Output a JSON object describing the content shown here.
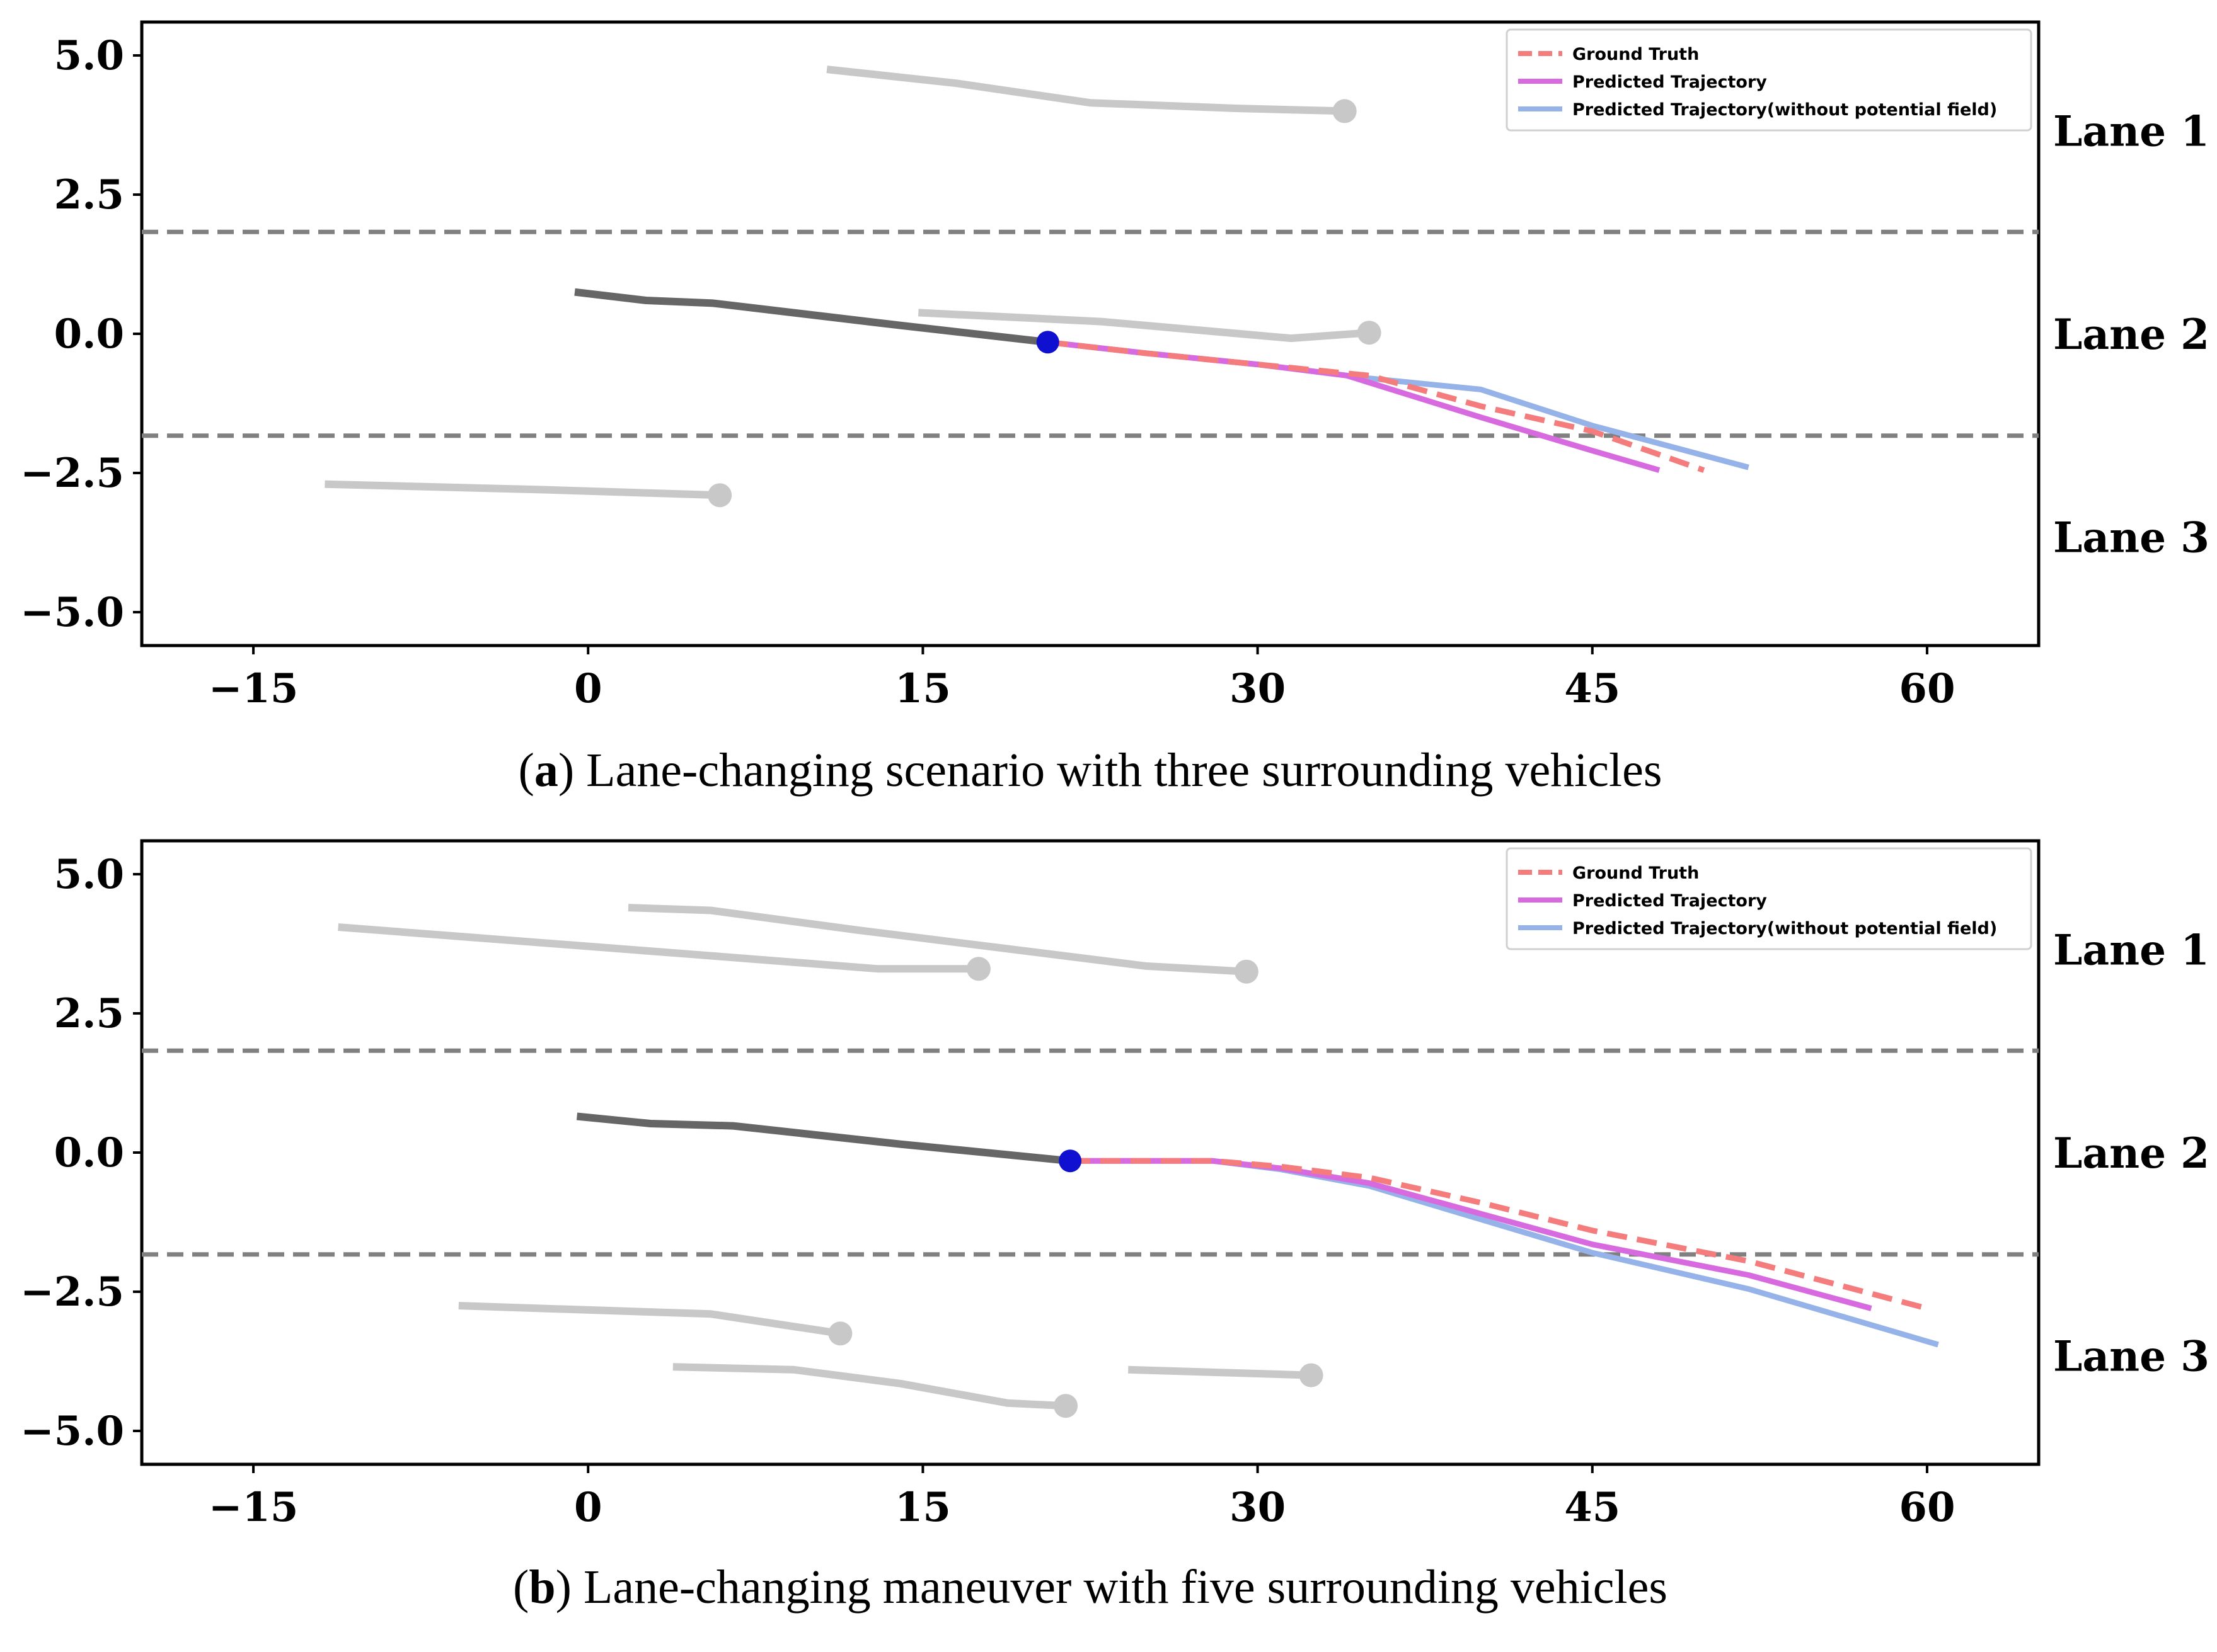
{
  "chart_data": [
    {
      "type": "line",
      "panel": "a",
      "caption_letter": "a",
      "caption_open": "(",
      "caption_rest": ") Lane-changing scenario with three surrounding vehicles",
      "xlim": [
        -20,
        65
      ],
      "ylim": [
        -5.6,
        5.6
      ],
      "xticks": [
        -15,
        0,
        15,
        30,
        45,
        60
      ],
      "xtick_labels": [
        "−15",
        "0",
        "15",
        "30",
        "45",
        "60"
      ],
      "yticks": [
        5.0,
        2.5,
        0.0,
        -2.5,
        -5.0
      ],
      "ytick_labels": [
        "5.0",
        "2.5",
        "0.0",
        "−2.5",
        "−5.0"
      ],
      "lane_boundaries": [
        1.83,
        -1.83
      ],
      "lane_labels": [
        {
          "text": "Lane 1",
          "y": 3.65
        },
        {
          "text": "Lane 2",
          "y": 0.0
        },
        {
          "text": "Lane 3",
          "y": -3.65
        }
      ],
      "legend": [
        "Ground Truth",
        "Predicted Trajectory",
        "Predicted Trajectory(without potential field)"
      ],
      "legend_position": "top-right",
      "colors": {
        "ground_truth": "#f47c7c",
        "predicted": "#d86ae0",
        "predicted_no_field": "#95b3e8",
        "ego_history": "#666666",
        "surrounding": "#c8c8c8",
        "ego_marker": "#1010d0",
        "lane_line": "#808080"
      },
      "surrounding": [
        [
          [
            10.7,
            4.75
          ],
          [
            16.5,
            4.5
          ],
          [
            22.5,
            4.15
          ],
          [
            29,
            4.05
          ],
          [
            33.9,
            4.0
          ]
        ],
        [
          [
            14.8,
            0.38
          ],
          [
            23,
            0.22
          ],
          [
            31.5,
            -0.08
          ],
          [
            35,
            0.02
          ]
        ],
        [
          [
            -11.8,
            -2.7
          ],
          [
            -2,
            -2.8
          ],
          [
            5.9,
            -2.9
          ]
        ]
      ],
      "ego_history": [
        [
          -0.6,
          0.75
        ],
        [
          2.6,
          0.6
        ],
        [
          5.6,
          0.55
        ],
        [
          14,
          0.15
        ],
        [
          20.6,
          -0.15
        ]
      ],
      "ego_current": [
        20.6,
        -0.15
      ],
      "ground_truth": [
        [
          20.6,
          -0.15
        ],
        [
          25,
          -0.35
        ],
        [
          30,
          -0.55
        ],
        [
          35,
          -0.75
        ],
        [
          40,
          -1.3
        ],
        [
          45,
          -1.75
        ],
        [
          50,
          -2.45
        ]
      ],
      "predicted": [
        [
          20.6,
          -0.15
        ],
        [
          25,
          -0.35
        ],
        [
          30,
          -0.55
        ],
        [
          34,
          -0.75
        ],
        [
          40,
          -1.5
        ],
        [
          45,
          -2.1
        ],
        [
          48,
          -2.45
        ]
      ],
      "predicted_no_field": [
        [
          20.6,
          -0.15
        ],
        [
          25,
          -0.35
        ],
        [
          30,
          -0.55
        ],
        [
          35,
          -0.8
        ],
        [
          40,
          -1.0
        ],
        [
          45,
          -1.65
        ],
        [
          52,
          -2.4
        ]
      ]
    },
    {
      "type": "line",
      "panel": "b",
      "caption_letter": "b",
      "caption_open": "(",
      "caption_rest": ") Lane-changing maneuver with five surrounding vehicles",
      "xlim": [
        -20,
        65
      ],
      "ylim": [
        -5.6,
        5.6
      ],
      "xticks": [
        -15,
        0,
        15,
        30,
        45,
        60
      ],
      "xtick_labels": [
        "−15",
        "0",
        "15",
        "30",
        "45",
        "60"
      ],
      "yticks": [
        5.0,
        2.5,
        0.0,
        -2.5,
        -5.0
      ],
      "ytick_labels": [
        "5.0",
        "2.5",
        "0.0",
        "−2.5",
        "−5.0"
      ],
      "lane_boundaries": [
        1.83,
        -1.83
      ],
      "lane_labels": [
        {
          "text": "Lane 1",
          "y": 3.65
        },
        {
          "text": "Lane 2",
          "y": 0.0
        },
        {
          "text": "Lane 3",
          "y": -3.65
        }
      ],
      "legend": [
        "Ground Truth",
        "Predicted Trajectory",
        "Predicted Trajectory(without potential field)"
      ],
      "legend_position": "top-right",
      "colors": {
        "ground_truth": "#f47c7c",
        "predicted": "#d86ae0",
        "predicted_no_field": "#95b3e8",
        "ego_history": "#666666",
        "surrounding": "#c8c8c8",
        "ego_marker": "#1010d0",
        "lane_line": "#808080"
      },
      "surrounding": [
        [
          [
            -11.2,
            4.05
          ],
          [
            5,
            3.55
          ],
          [
            13,
            3.3
          ],
          [
            17.5,
            3.3
          ]
        ],
        [
          [
            1.8,
            4.4
          ],
          [
            5.5,
            4.35
          ],
          [
            12,
            4.0
          ],
          [
            25,
            3.35
          ],
          [
            29.5,
            3.25
          ]
        ],
        [
          [
            -5.8,
            -2.75
          ],
          [
            5.5,
            -2.9
          ],
          [
            11.3,
            -3.25
          ]
        ],
        [
          [
            3.8,
            -3.85
          ],
          [
            9.2,
            -3.9
          ],
          [
            14,
            -4.15
          ],
          [
            18.8,
            -4.5
          ],
          [
            21.4,
            -4.55
          ]
        ],
        [
          [
            24.2,
            -3.9
          ],
          [
            32.4,
            -4.0
          ]
        ]
      ],
      "ego_history": [
        [
          -0.5,
          0.65
        ],
        [
          2.8,
          0.52
        ],
        [
          6.5,
          0.48
        ],
        [
          14,
          0.15
        ],
        [
          21.6,
          -0.15
        ]
      ],
      "ego_current": [
        21.6,
        -0.15
      ],
      "ground_truth": [
        [
          21.6,
          -0.15
        ],
        [
          25,
          -0.15
        ],
        [
          28,
          -0.15
        ],
        [
          31,
          -0.25
        ],
        [
          35,
          -0.45
        ],
        [
          40,
          -0.9
        ],
        [
          45,
          -1.4
        ],
        [
          52,
          -1.95
        ],
        [
          60,
          -2.8
        ]
      ],
      "predicted": [
        [
          21.6,
          -0.15
        ],
        [
          25,
          -0.15
        ],
        [
          28,
          -0.15
        ],
        [
          31,
          -0.28
        ],
        [
          35,
          -0.55
        ],
        [
          40,
          -1.1
        ],
        [
          45,
          -1.65
        ],
        [
          52,
          -2.2
        ],
        [
          57.5,
          -2.8
        ]
      ],
      "predicted_no_field": [
        [
          21.6,
          -0.15
        ],
        [
          25,
          -0.15
        ],
        [
          28,
          -0.15
        ],
        [
          31,
          -0.3
        ],
        [
          35,
          -0.6
        ],
        [
          40,
          -1.2
        ],
        [
          45,
          -1.8
        ],
        [
          52,
          -2.45
        ],
        [
          60.5,
          -3.45
        ]
      ]
    }
  ]
}
